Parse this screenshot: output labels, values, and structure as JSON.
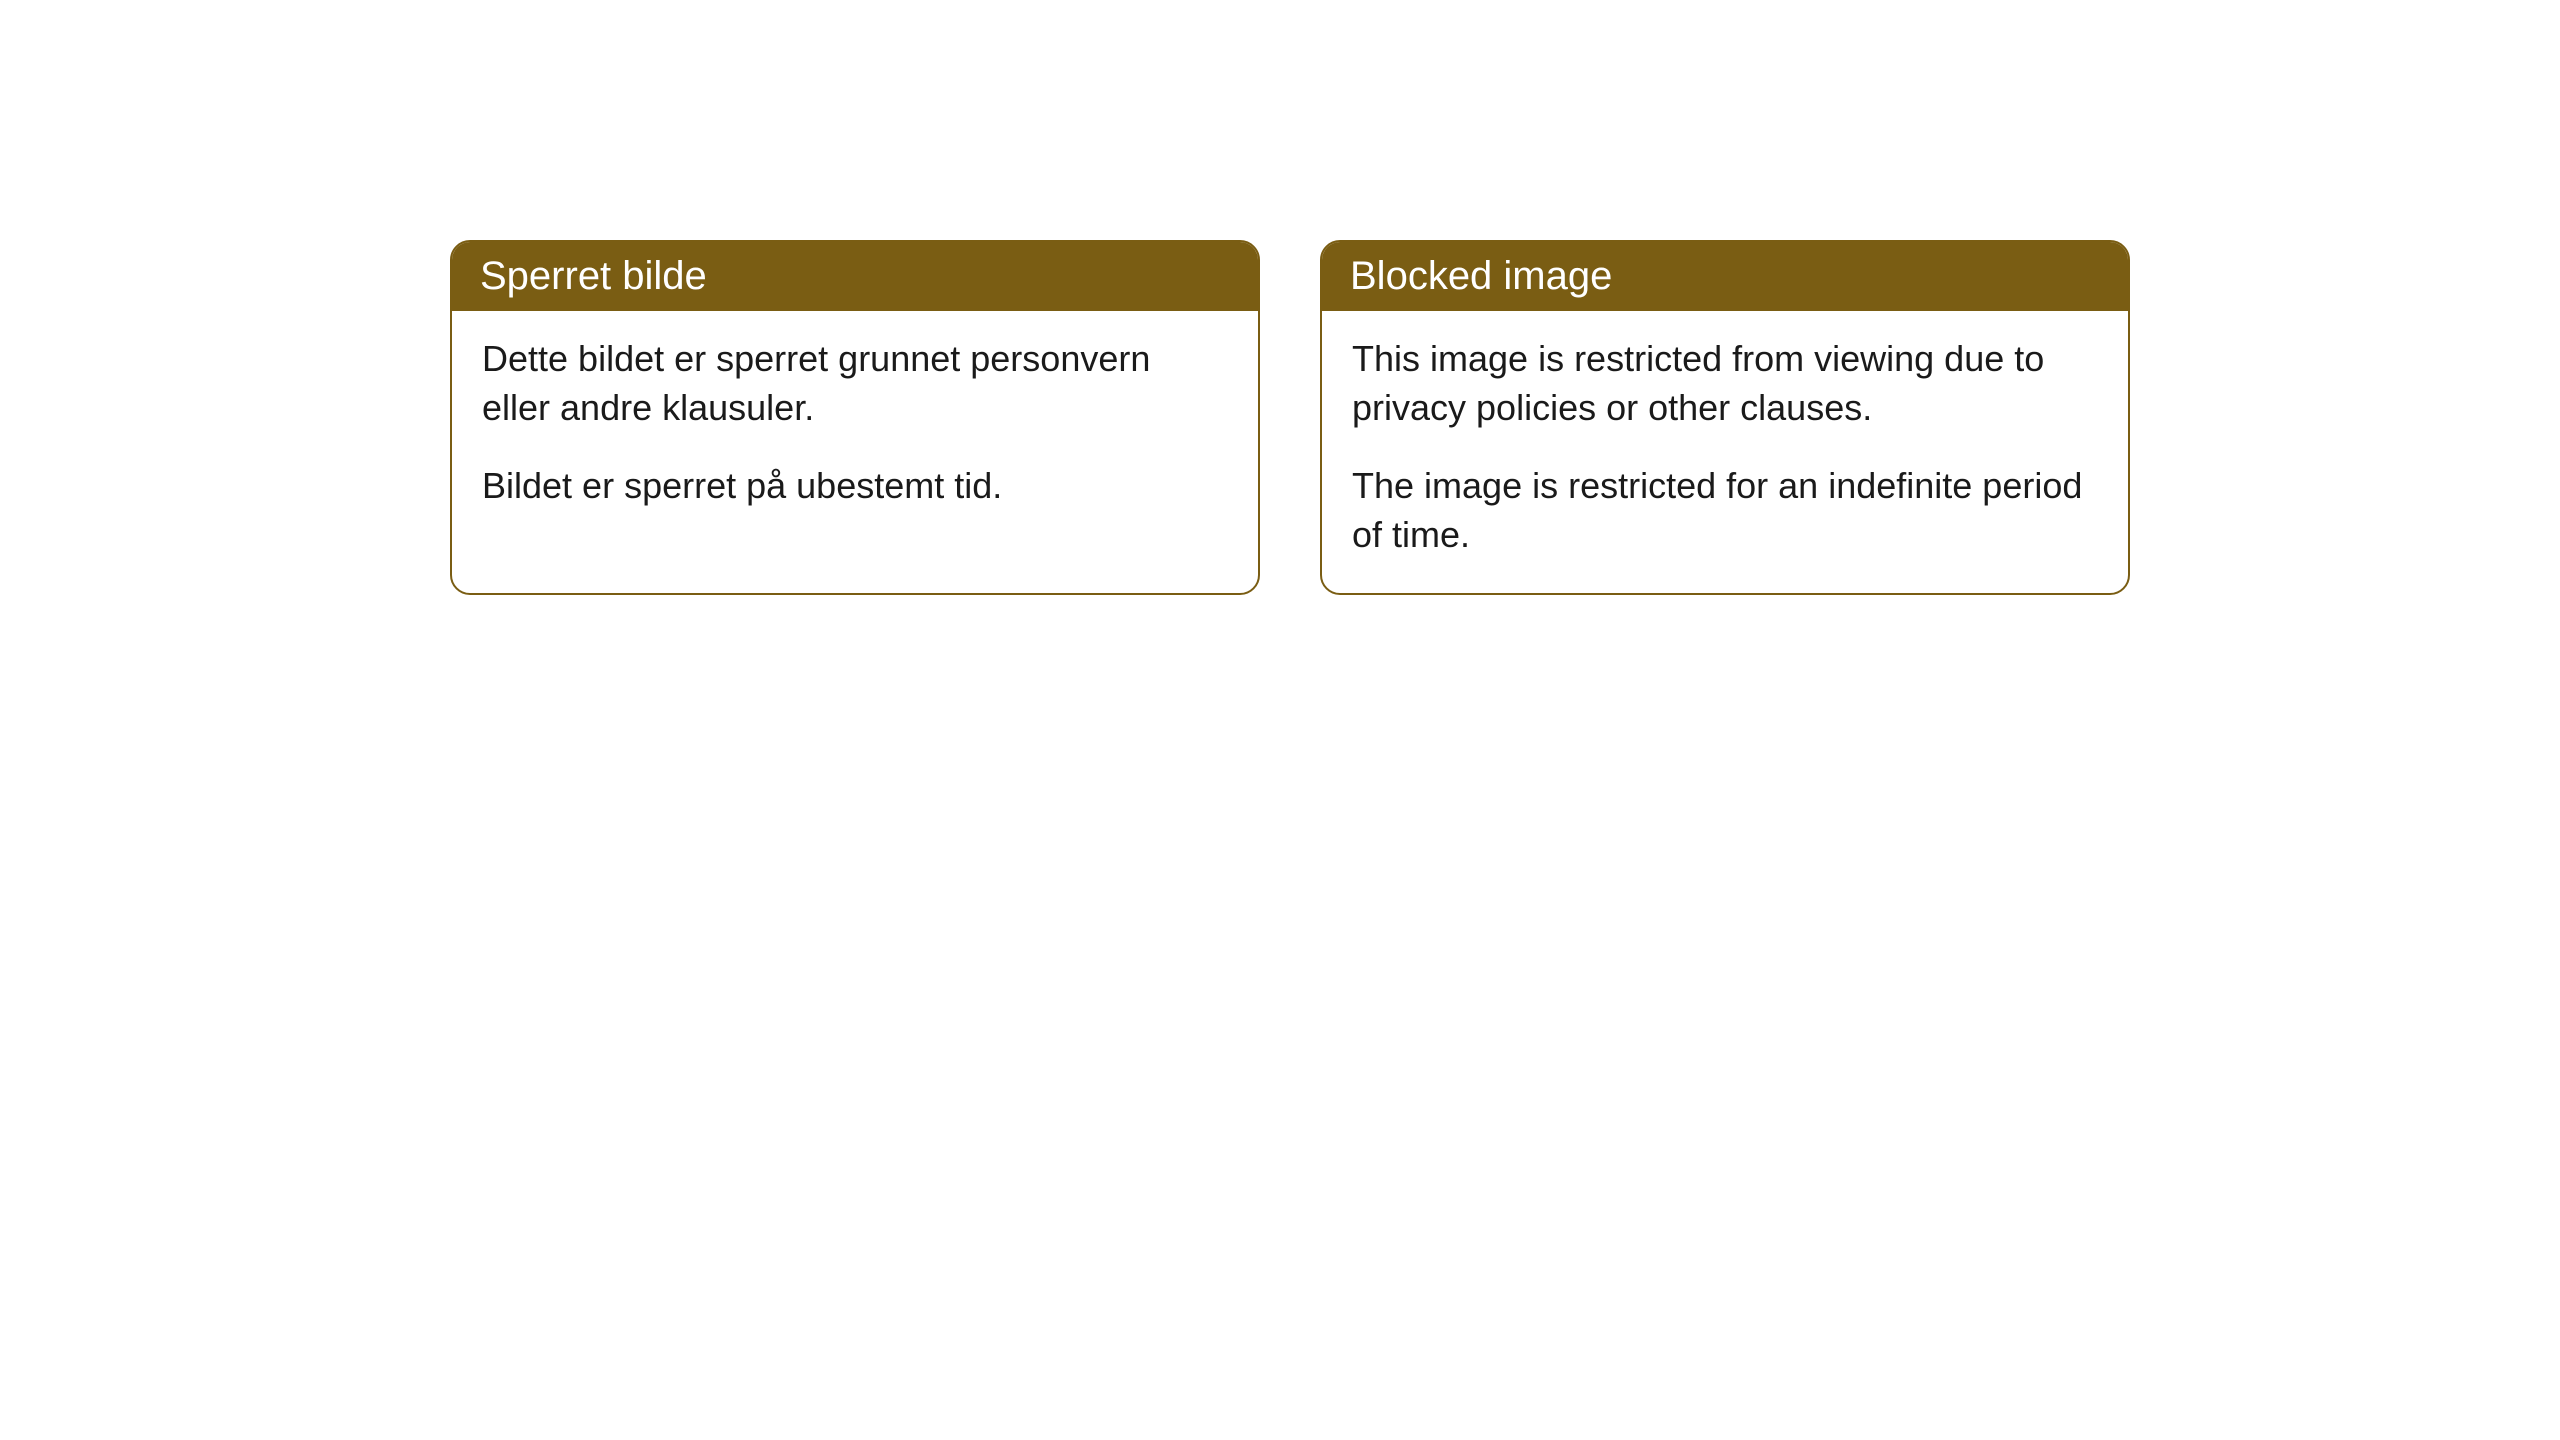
{
  "cards": [
    {
      "title": "Sperret bilde",
      "paragraph1": "Dette bildet er sperret grunnet personvern eller andre klausuler.",
      "paragraph2": "Bildet er sperret på ubestemt tid."
    },
    {
      "title": "Blocked image",
      "paragraph1": "This image is restricted from viewing due to privacy policies or other clauses.",
      "paragraph2": "The image is restricted for an indefinite period of time."
    }
  ],
  "styling": {
    "header_bg_color": "#7a5d13",
    "header_text_color": "#ffffff",
    "border_color": "#7a5d13",
    "body_bg_color": "#ffffff",
    "body_text_color": "#1a1a1a",
    "border_radius": 20,
    "title_fontsize": 40,
    "body_fontsize": 36
  }
}
